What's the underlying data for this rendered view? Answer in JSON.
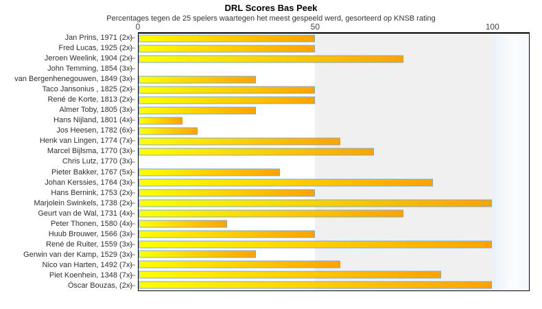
{
  "title": "DRL Scores Bas Peek",
  "subtitle": "Percentages tegen de 25 spelers waartegen het meest gespeeld werd, gesorteerd op KNSB rating",
  "chart_data": {
    "type": "bar",
    "orientation": "horizontal",
    "title": "DRL Scores Bas Peek",
    "subtitle": "Percentages tegen de 25 spelers waartegen het meest gespeeld werd, gesorteerd op KNSB rating",
    "categories": [
      "Jan Prins, 1971 (2x)",
      "Fred Lucas, 1925 (2x)",
      "Jeroen Weelink, 1904 (2x)",
      "John Temming, 1854 (3x)",
      "van Bergenhenegouwen, 1849 (3x)",
      "Taco Jansonius , 1825 (2x)",
      "René de Korte, 1813 (2x)",
      "Almer Toby, 1805 (3x)",
      "Hans Nijland, 1801 (4x)",
      "Jos Heesen, 1782 (6x)",
      "Henk van Lingen, 1774 (7x)",
      "Marcel Bijlsma, 1770 (3x)",
      "Chris Lutz, 1770 (3x)",
      "Pieter Bakker, 1767 (5x)",
      "Johan Kerssies, 1764 (3x)",
      "Hans Bernink, 1753 (2x)",
      "Marjolein Swinkels, 1738 (2x)",
      "Geurt van de Wal, 1731 (4x)",
      "Peter Thonen, 1580 (4x)",
      "Huub Brouwer, 1566 (3x)",
      "René de Ruiter, 1559 (3x)",
      "Gerwin van der Kamp, 1529 (3x)",
      "Nico van Harten, 1492 (7x)",
      "Piet Koenhein, 1348 (7x)",
      "Óscar Bouzas,  (2x)"
    ],
    "values": [
      50,
      50,
      75,
      0,
      33.3,
      50,
      50,
      33.3,
      12.5,
      16.7,
      57.1,
      66.7,
      0,
      40,
      83.3,
      50,
      100,
      75,
      25,
      50,
      100,
      33.3,
      57.1,
      85.7,
      100
    ],
    "xlabel": "",
    "ylabel": "",
    "xlim": [
      0,
      110.5
    ],
    "xticks": [
      0,
      50,
      100
    ],
    "grid": false,
    "legend": null,
    "background_bands": [
      {
        "from": 0,
        "to": 50,
        "color": "#ffffff"
      },
      {
        "from": 50,
        "to": 100,
        "color": "#f0f0f0"
      },
      {
        "from": 100,
        "to": 110.5,
        "color": "linear-gradient(90deg, #e9f1f7 0%, #fbfdfe 55%, #f4f9fc 100%)"
      }
    ],
    "bar_color_start": "#ffff00",
    "bar_color_end": "#ffa200",
    "bar_border_color": "#79aad2",
    "axis_color": "#000000",
    "tick_label_color": "#444444",
    "category_label_color": "#2e2e2e"
  }
}
